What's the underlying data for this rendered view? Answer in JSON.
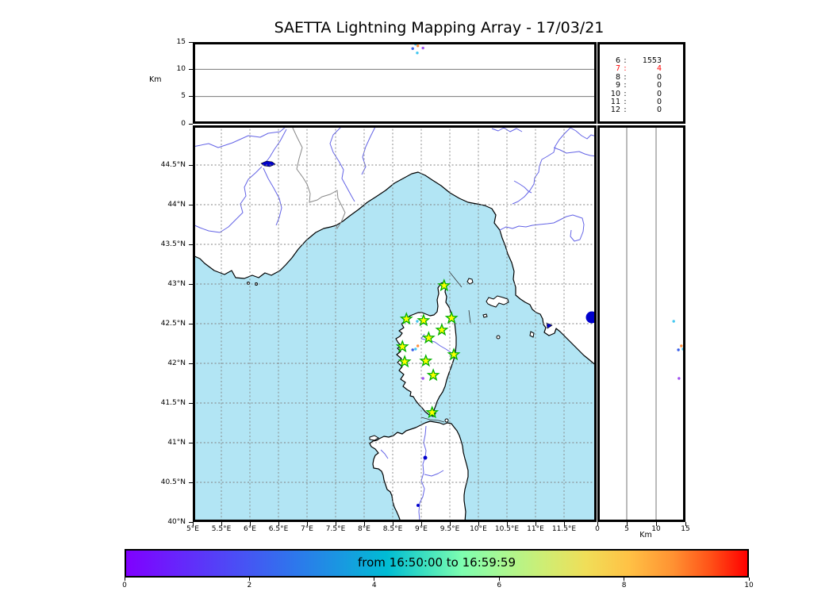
{
  "title": "SAETTA Lightning Mapping Array - 17/03/21",
  "panels": {
    "altitude_panel": {
      "ylabel": "Km",
      "yticks": [
        0,
        5,
        10,
        15
      ],
      "ymax": 15,
      "gridlines": [
        5,
        10
      ]
    },
    "map_panel": {
      "lon_ticks": [
        {
          "v": 5,
          "label": "5°E"
        },
        {
          "v": 5.5,
          "label": "5.5°E"
        },
        {
          "v": 6,
          "label": "6°E"
        },
        {
          "v": 6.5,
          "label": "6.5°E"
        },
        {
          "v": 7,
          "label": "7°E"
        },
        {
          "v": 7.5,
          "label": "7.5°E"
        },
        {
          "v": 8,
          "label": "8°E"
        },
        {
          "v": 8.5,
          "label": "8.5°E"
        },
        {
          "v": 9,
          "label": "9°E"
        },
        {
          "v": 9.5,
          "label": "9.5°E"
        },
        {
          "v": 10,
          "label": "10°E"
        },
        {
          "v": 10.5,
          "label": "10.5°E"
        },
        {
          "v": 11,
          "label": "11°E"
        },
        {
          "v": 11.5,
          "label": "11.5°E"
        }
      ],
      "lat_ticks": [
        {
          "v": 44.5,
          "label": "44.5°N"
        },
        {
          "v": 44,
          "label": "44°N"
        },
        {
          "v": 43.5,
          "label": "43.5°N"
        },
        {
          "v": 43,
          "label": "43°N"
        },
        {
          "v": 42.5,
          "label": "42.5°N"
        },
        {
          "v": 42,
          "label": "42°N"
        },
        {
          "v": 41.5,
          "label": "41.5°N"
        },
        {
          "v": 41,
          "label": "41°N"
        },
        {
          "v": 40.5,
          "label": "40.5°N"
        },
        {
          "v": 40,
          "label": "40°N"
        }
      ]
    },
    "right_panel": {
      "xlabel": "Km",
      "xticks": [
        0,
        5,
        10,
        15
      ],
      "xmax": 15,
      "gridlines": [
        5,
        10
      ]
    },
    "counts_panel": {
      "rows": [
        {
          "label": "6",
          "sep": ":",
          "value": "1553",
          "color": "#000000"
        },
        {
          "label": "7",
          "sep": ":",
          "value": "4",
          "color": "#ff0000"
        },
        {
          "label": "8",
          "sep": ":",
          "value": "0",
          "color": "#000000"
        },
        {
          "label": "9",
          "sep": ":",
          "value": "0",
          "color": "#000000"
        },
        {
          "label": "10",
          "sep": ":",
          "value": "0",
          "color": "#000000"
        },
        {
          "label": "11",
          "sep": ":",
          "value": "0",
          "color": "#000000"
        },
        {
          "label": "12",
          "sep": ":",
          "value": "0",
          "color": "#000000"
        }
      ]
    }
  },
  "colorbar": {
    "label": "from 16:50:00 to 16:59:59",
    "ticks": [
      0,
      2,
      4,
      6,
      8,
      10
    ],
    "min": 0,
    "max": 10,
    "gradient": [
      "#8000ff 0%",
      "#6528fb 9%",
      "#4a4ff5 18%",
      "#2e76ec 27%",
      "#189ae0 35%",
      "#00bcd4 42%",
      "#3cdfc0 48%",
      "#7dfdb0 54%",
      "#a5f895 60%",
      "#cdee75 67%",
      "#f0de58 74%",
      "#ffc145 81%",
      "#ff9232 88%",
      "#ff5218 94%",
      "#ff0000 100%"
    ]
  },
  "colors": {
    "sea": "#b2e5f4",
    "land": "#ffffff",
    "coast": "#000000",
    "river": "#6464e6",
    "lake": "#0000cc",
    "map_grid": "#808080",
    "panel_grid": "#777777",
    "country_border": "#888888",
    "station_fill": "#ffff00",
    "station_edge": "#00b000",
    "highlight_text": "#ff0000"
  },
  "chart_data": [
    {
      "type": "scatter",
      "name": "geographic-map",
      "xlim": [
        5,
        12.07
      ],
      "ylim": [
        40,
        45
      ],
      "x_unit": "deg_E",
      "y_unit": "deg_N",
      "grid": true,
      "stations": [
        {
          "lon": 9.4,
          "lat": 42.98
        },
        {
          "lon": 8.74,
          "lat": 42.56
        },
        {
          "lon": 9.04,
          "lat": 42.54
        },
        {
          "lon": 9.53,
          "lat": 42.57
        },
        {
          "lon": 9.36,
          "lat": 42.42
        },
        {
          "lon": 9.13,
          "lat": 42.32
        },
        {
          "lon": 8.67,
          "lat": 42.21
        },
        {
          "lon": 9.57,
          "lat": 42.11
        },
        {
          "lon": 8.71,
          "lat": 42.02
        },
        {
          "lon": 9.08,
          "lat": 42.03
        },
        {
          "lon": 9.21,
          "lat": 41.85
        },
        {
          "lon": 9.19,
          "lat": 41.38
        }
      ],
      "sources": [
        {
          "lon": 8.85,
          "lat": 42.17,
          "alt_km": 13.8,
          "color": "#3a5fe8"
        },
        {
          "lon": 8.94,
          "lat": 42.22,
          "alt_km": 14.3,
          "color": "#ff9140"
        },
        {
          "lon": 9.03,
          "lat": 41.81,
          "alt_km": 13.9,
          "color": "#a050f0"
        },
        {
          "lon": 8.9,
          "lat": 42.18,
          "alt_km": 14.6,
          "color": "#45c8f0"
        },
        {
          "lon": 8.93,
          "lat": 42.53,
          "alt_km": 13.0,
          "color": "#45c8f0"
        }
      ]
    },
    {
      "type": "scatter",
      "name": "altitude-cross-section-top",
      "x": "longitude_deg_E",
      "y": "altitude_km",
      "xlim": [
        5,
        12.07
      ],
      "ylim": [
        0,
        15
      ],
      "grid_y": [
        5,
        10
      ]
    },
    {
      "type": "scatter",
      "name": "altitude-cross-section-right",
      "x": "altitude_km",
      "y": "latitude_deg_N",
      "xlim": [
        0,
        15
      ],
      "ylim": [
        40,
        45
      ],
      "grid_x": [
        5,
        10
      ]
    },
    {
      "type": "table",
      "name": "source-count-by-station-number",
      "columns": [
        "num_stations",
        "num_sources"
      ],
      "rows": [
        [
          6,
          1553
        ],
        [
          7,
          4
        ],
        [
          8,
          0
        ],
        [
          9,
          0
        ],
        [
          10,
          0
        ],
        [
          11,
          0
        ],
        [
          12,
          0
        ]
      ],
      "highlighted_row_index": 1,
      "highlight_color": "#ff0000"
    },
    {
      "type": "colorbar",
      "name": "time-colorbar",
      "title": "from 16:50:00 to 16:59:59",
      "range": [
        0,
        10
      ],
      "ticks": [
        0,
        2,
        4,
        6,
        8,
        10
      ],
      "colormap": "rainbow"
    }
  ]
}
